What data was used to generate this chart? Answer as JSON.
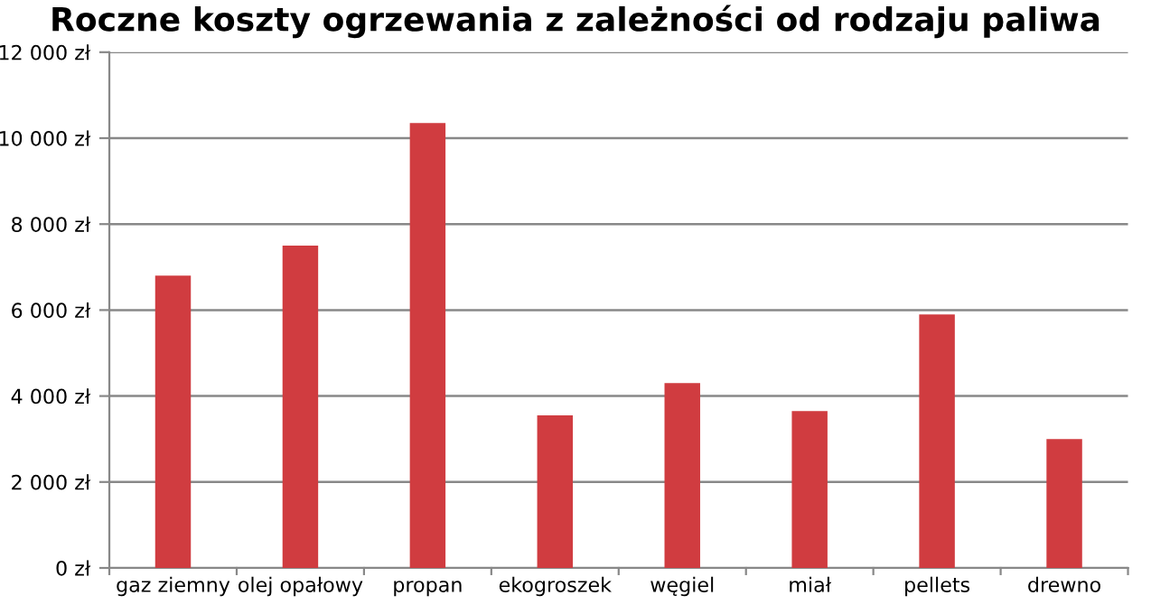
{
  "chart_data": {
    "type": "bar",
    "title": "Roczne koszty ogrzewania z zależności od rodzaju paliwa",
    "categories": [
      "gaz ziemny",
      "olej opałowy",
      "propan",
      "ekogroszek",
      "węgiel",
      "miał",
      "pellets",
      "drewno"
    ],
    "values": [
      6800,
      7500,
      10350,
      3550,
      4300,
      3650,
      5900,
      3000
    ],
    "color": "#d03c40",
    "ylim": [
      0,
      12000
    ],
    "yticks": [
      {
        "value": 0,
        "label": "0 zł"
      },
      {
        "value": 2000,
        "label": "2 000 zł"
      },
      {
        "value": 4000,
        "label": "4 000 zł"
      },
      {
        "value": 6000,
        "label": "6 000 zł"
      },
      {
        "value": 8000,
        "label": "8 000 zł"
      },
      {
        "value": 10000,
        "label": "10 000 zł"
      },
      {
        "value": 12000,
        "label": "12 000 zł"
      }
    ],
    "grid": "y",
    "legend": false
  }
}
